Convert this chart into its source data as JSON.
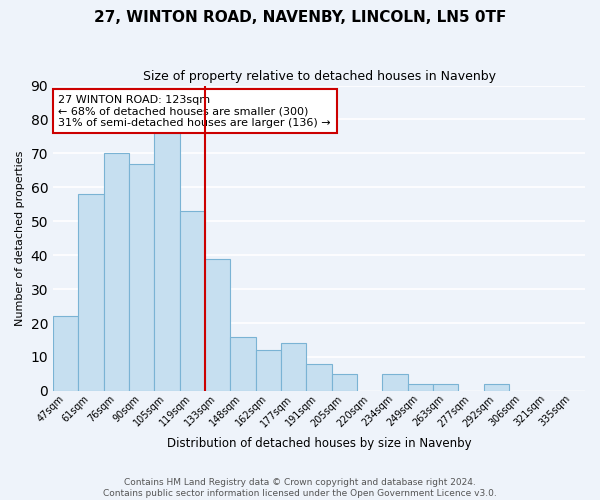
{
  "title": "27, WINTON ROAD, NAVENBY, LINCOLN, LN5 0TF",
  "subtitle": "Size of property relative to detached houses in Navenby",
  "xlabel": "Distribution of detached houses by size in Navenby",
  "ylabel": "Number of detached properties",
  "bin_labels": [
    "47sqm",
    "61sqm",
    "76sqm",
    "90sqm",
    "105sqm",
    "119sqm",
    "133sqm",
    "148sqm",
    "162sqm",
    "177sqm",
    "191sqm",
    "205sqm",
    "220sqm",
    "234sqm",
    "249sqm",
    "263sqm",
    "277sqm",
    "292sqm",
    "306sqm",
    "321sqm",
    "335sqm"
  ],
  "bar_heights": [
    22,
    58,
    70,
    67,
    76,
    53,
    39,
    16,
    12,
    14,
    8,
    5,
    0,
    5,
    2,
    2,
    0,
    2,
    0,
    0,
    0
  ],
  "bar_color": "#c6dff0",
  "bar_edge_color": "#7ab3d4",
  "vline_x": 5.5,
  "vline_color": "#cc0000",
  "annotation_line1": "27 WINTON ROAD: 123sqm",
  "annotation_line2": "← 68% of detached houses are smaller (300)",
  "annotation_line3": "31% of semi-detached houses are larger (136) →",
  "annotation_box_color": "white",
  "annotation_box_edge": "#cc0000",
  "ylim": [
    0,
    90
  ],
  "yticks": [
    0,
    10,
    20,
    30,
    40,
    50,
    60,
    70,
    80,
    90
  ],
  "footer_text": "Contains HM Land Registry data © Crown copyright and database right 2024.\nContains public sector information licensed under the Open Government Licence v3.0.",
  "background_color": "#eef3fa",
  "grid_color": "white"
}
